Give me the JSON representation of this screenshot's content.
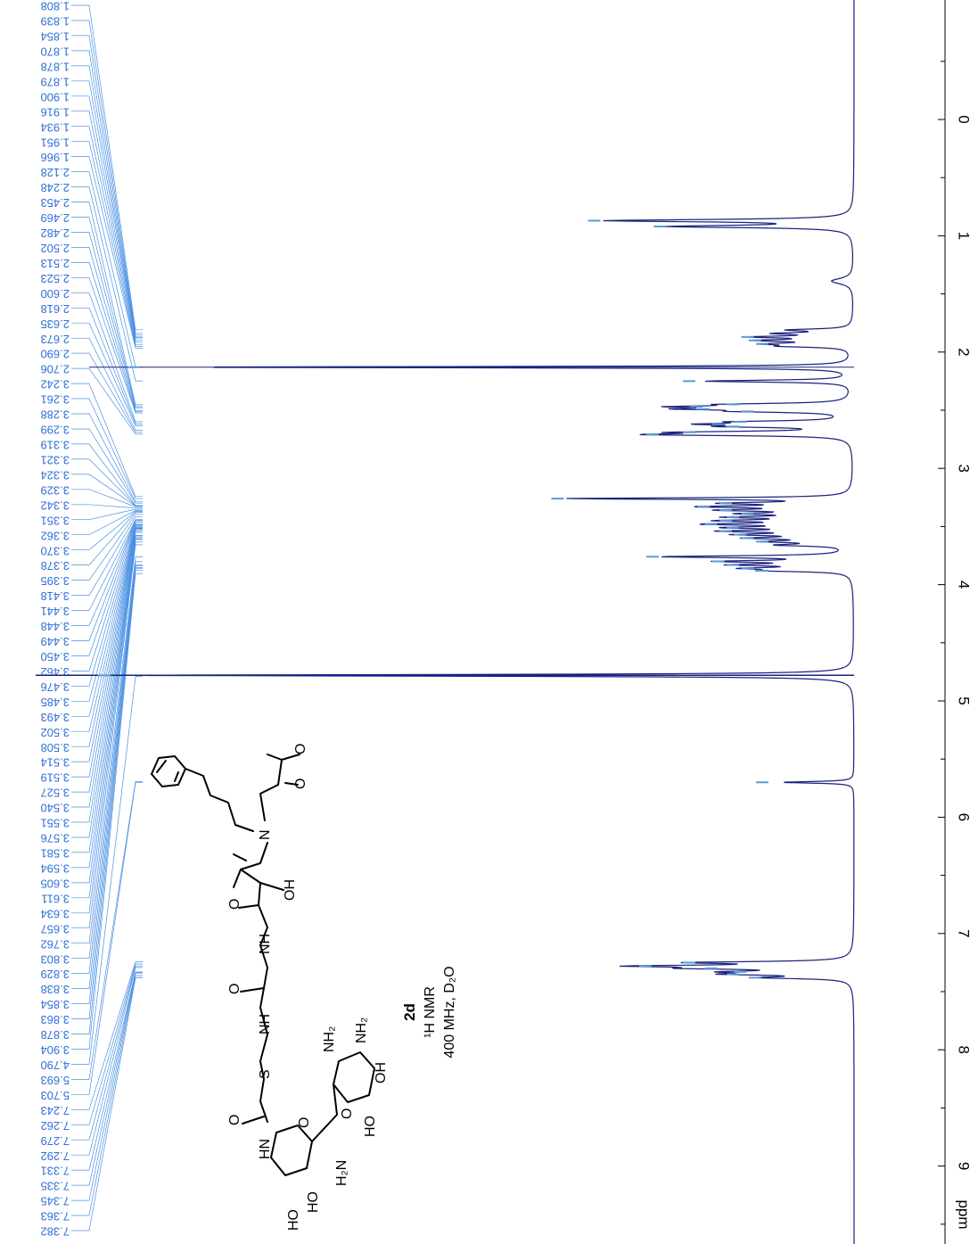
{
  "chart_data": {
    "type": "line",
    "title": "",
    "xlabel": "ppm",
    "ylabel": "",
    "xlim": [
      -0.8,
      9.4
    ],
    "x_ticks": [
      0,
      1,
      2,
      3,
      4,
      5,
      6,
      7,
      8,
      9
    ],
    "orientation": "rotated-90-clockwise",
    "compound": {
      "label": "2d",
      "experiment": "¹H NMR",
      "conditions": "400 MHz, D₂O"
    },
    "peak_labels": [
      "7.382",
      "7.363",
      "7.345",
      "7.335",
      "7.331",
      "7.292",
      "7.279",
      "7.262",
      "7.243",
      "5.703",
      "5.693",
      "4.790",
      "3.904",
      "3.878",
      "3.863",
      "3.854",
      "3.838",
      "3.829",
      "3.803",
      "3.762",
      "3.657",
      "3.634",
      "3.611",
      "3.605",
      "3.594",
      "3.581",
      "3.576",
      "3.551",
      "3.540",
      "3.527",
      "3.519",
      "3.514",
      "3.508",
      "3.502",
      "3.493",
      "3.485",
      "3.476",
      "3.462",
      "3.450",
      "3.449",
      "3.448",
      "3.441",
      "3.418",
      "3.395",
      "3.378",
      "3.370",
      "3.362",
      "3.351",
      "3.342",
      "3.329",
      "3.324",
      "3.321",
      "3.319",
      "3.299",
      "3.288",
      "3.261",
      "3.242",
      "2.706",
      "2.690",
      "2.673",
      "2.635",
      "2.618",
      "2.600",
      "2.523",
      "2.513",
      "2.502",
      "2.482",
      "2.469",
      "2.453",
      "2.248",
      "2.128",
      "1.966",
      "1.951",
      "1.934",
      "1.916",
      "1.900",
      "1.879",
      "1.878",
      "1.870",
      "1.854",
      "1.839",
      "1.808"
    ],
    "peaks": [
      {
        "ppm": 0.87,
        "intensity": 0.33,
        "width": 0.012
      },
      {
        "ppm": 0.92,
        "intensity": 0.24,
        "width": 0.012
      },
      {
        "ppm": 1.39,
        "intensity": 0.03,
        "width": 0.03
      },
      {
        "ppm": 1.81,
        "intensity": 0.08,
        "width": 0.01
      },
      {
        "ppm": 1.84,
        "intensity": 0.09,
        "width": 0.01
      },
      {
        "ppm": 1.87,
        "intensity": 0.12,
        "width": 0.01
      },
      {
        "ppm": 1.9,
        "intensity": 0.11,
        "width": 0.01
      },
      {
        "ppm": 1.93,
        "intensity": 0.1,
        "width": 0.01
      },
      {
        "ppm": 1.95,
        "intensity": 0.08,
        "width": 0.01
      },
      {
        "ppm": 2.13,
        "intensity": 0.96,
        "width": 0.006
      },
      {
        "ppm": 2.25,
        "intensity": 0.2,
        "width": 0.01
      },
      {
        "ppm": 2.45,
        "intensity": 0.14,
        "width": 0.01
      },
      {
        "ppm": 2.47,
        "intensity": 0.19,
        "width": 0.01
      },
      {
        "ppm": 2.49,
        "intensity": 0.18,
        "width": 0.01
      },
      {
        "ppm": 2.51,
        "intensity": 0.12,
        "width": 0.01
      },
      {
        "ppm": 2.6,
        "intensity": 0.13,
        "width": 0.01
      },
      {
        "ppm": 2.62,
        "intensity": 0.16,
        "width": 0.01
      },
      {
        "ppm": 2.64,
        "intensity": 0.14,
        "width": 0.01
      },
      {
        "ppm": 2.69,
        "intensity": 0.2,
        "width": 0.01
      },
      {
        "ppm": 2.71,
        "intensity": 0.25,
        "width": 0.01
      },
      {
        "ppm": 3.26,
        "intensity": 0.38,
        "width": 0.008
      },
      {
        "ppm": 3.3,
        "intensity": 0.15,
        "width": 0.01
      },
      {
        "ppm": 3.33,
        "intensity": 0.18,
        "width": 0.01
      },
      {
        "ppm": 3.36,
        "intensity": 0.15,
        "width": 0.01
      },
      {
        "ppm": 3.39,
        "intensity": 0.12,
        "width": 0.01
      },
      {
        "ppm": 3.42,
        "intensity": 0.14,
        "width": 0.01
      },
      {
        "ppm": 3.45,
        "intensity": 0.15,
        "width": 0.01
      },
      {
        "ppm": 3.48,
        "intensity": 0.17,
        "width": 0.01
      },
      {
        "ppm": 3.51,
        "intensity": 0.14,
        "width": 0.01
      },
      {
        "ppm": 3.54,
        "intensity": 0.15,
        "width": 0.01
      },
      {
        "ppm": 3.57,
        "intensity": 0.13,
        "width": 0.01
      },
      {
        "ppm": 3.6,
        "intensity": 0.12,
        "width": 0.01
      },
      {
        "ppm": 3.63,
        "intensity": 0.1,
        "width": 0.01
      },
      {
        "ppm": 3.66,
        "intensity": 0.09,
        "width": 0.01
      },
      {
        "ppm": 3.76,
        "intensity": 0.25,
        "width": 0.01
      },
      {
        "ppm": 3.8,
        "intensity": 0.16,
        "width": 0.01
      },
      {
        "ppm": 3.83,
        "intensity": 0.14,
        "width": 0.01
      },
      {
        "ppm": 3.86,
        "intensity": 0.12,
        "width": 0.01
      },
      {
        "ppm": 3.88,
        "intensity": 0.1,
        "width": 0.01
      },
      {
        "ppm": 4.78,
        "intensity": 1.0,
        "width": 0.008
      },
      {
        "ppm": 5.7,
        "intensity": 0.1,
        "width": 0.008
      },
      {
        "ppm": 7.25,
        "intensity": 0.2,
        "width": 0.01
      },
      {
        "ppm": 7.28,
        "intensity": 0.26,
        "width": 0.01
      },
      {
        "ppm": 7.3,
        "intensity": 0.17,
        "width": 0.01
      },
      {
        "ppm": 7.33,
        "intensity": 0.13,
        "width": 0.01
      },
      {
        "ppm": 7.35,
        "intensity": 0.14,
        "width": 0.01
      },
      {
        "ppm": 7.38,
        "intensity": 0.11,
        "width": 0.01
      }
    ]
  }
}
